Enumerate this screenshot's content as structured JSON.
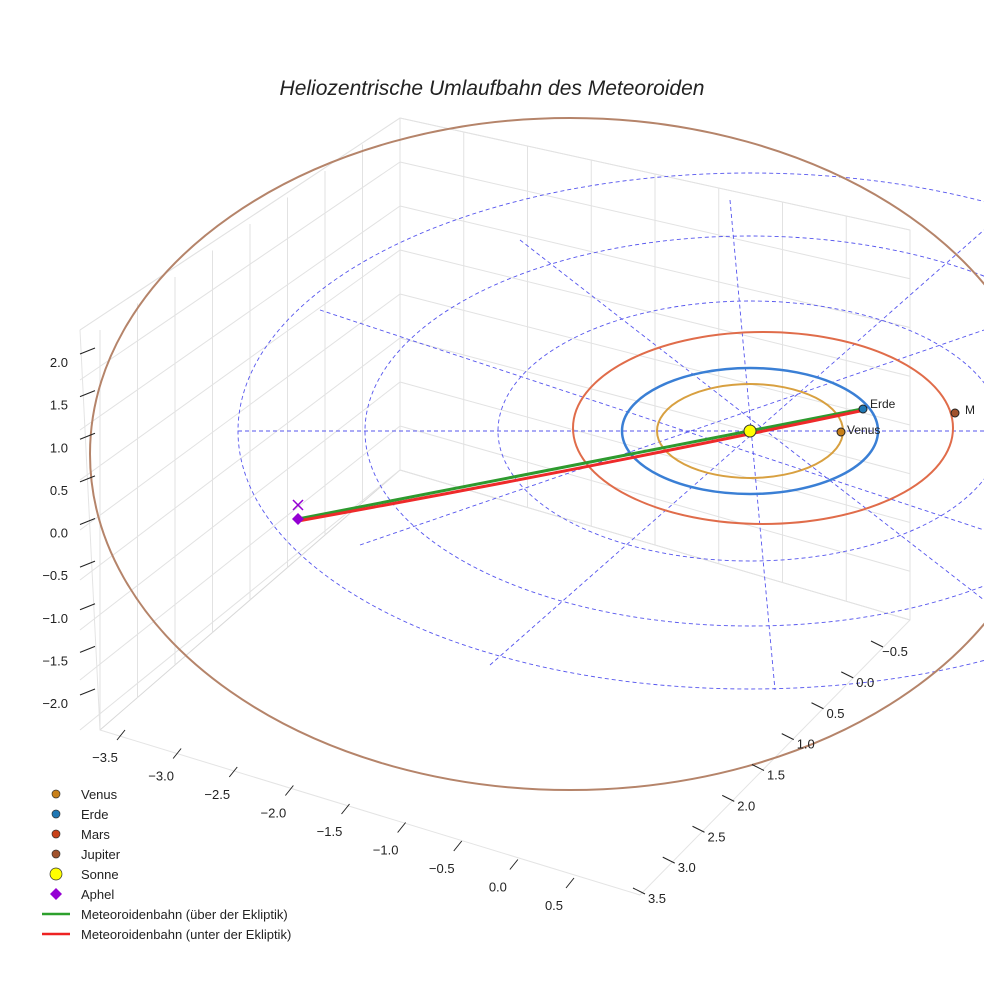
{
  "chart_data": {
    "type": "line",
    "title": "Heliozentrische Umlaufbahn des Meteoroiden",
    "x_ticks": [
      "−3.5",
      "−3.0",
      "−2.5",
      "−2.0",
      "−1.5",
      "−1.0",
      "−0.5",
      "0.0",
      "0.5"
    ],
    "y_ticks": [
      "−0.5",
      "0.0",
      "0.5",
      "1.0",
      "1.5",
      "2.0",
      "2.5",
      "3.0",
      "3.5"
    ],
    "z_ticks": [
      "2.0",
      "1.5",
      "1.0",
      "0.5",
      "0.0",
      "−0.5",
      "−1.0",
      "−1.5",
      "−2.0"
    ],
    "xlim": [
      -3.7,
      0.7
    ],
    "ylim": [
      -0.7,
      3.7
    ],
    "zlim": [
      -2.2,
      2.2
    ],
    "planet_labels": {
      "erde": "Erde",
      "venus": "Venus",
      "mars": "M"
    },
    "legend": [
      {
        "label": "Venus",
        "color": "#c8801a",
        "marker": "circle"
      },
      {
        "label": "Erde",
        "color": "#1f77b4",
        "marker": "circle"
      },
      {
        "label": "Mars",
        "color": "#c8421a",
        "marker": "circle"
      },
      {
        "label": "Jupiter",
        "color": "#a0522d",
        "marker": "circle"
      },
      {
        "label": "Sonne",
        "color": "#ffff00",
        "marker": "circle-large"
      },
      {
        "label": "Aphel",
        "color": "#9400d3",
        "marker": "diamond"
      },
      {
        "label": "Meteoroidenbahn (über der Ekliptik)",
        "color": "#2ca02c",
        "marker": "line"
      },
      {
        "label": "Meteoroidenbahn (unter der Ekliptik)",
        "color": "#ee2222",
        "marker": "line"
      }
    ],
    "legend_position": "bottom-left"
  }
}
